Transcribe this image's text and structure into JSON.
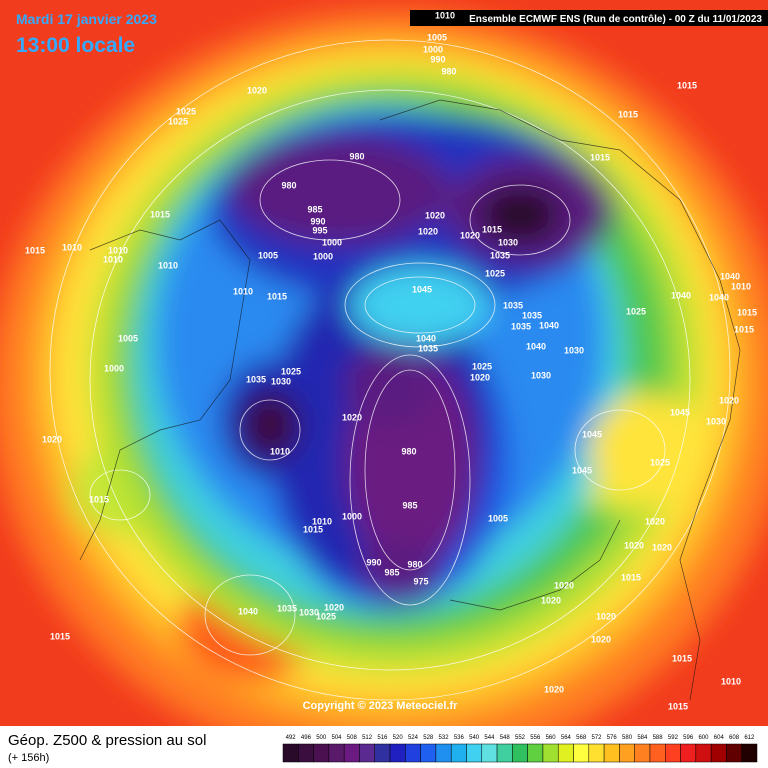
{
  "header": {
    "date": "Mardi 17 janvier 2023",
    "time": "13:00 locale",
    "run": "Ensemble ECMWF ENS  (Run de contrôle)  -  00 Z du 11/01/2023"
  },
  "copyright": "Copyright © 2023 Meteociel.fr",
  "footer": {
    "title": "Géop. Z500 & pression au sol",
    "lead": "(+ 156h)"
  },
  "colorbar": {
    "ticks": [
      492,
      496,
      500,
      504,
      508,
      512,
      516,
      520,
      524,
      528,
      532,
      536,
      540,
      544,
      548,
      552,
      556,
      560,
      564,
      568,
      572,
      576,
      580,
      584,
      588,
      592,
      596,
      600,
      604,
      608,
      612
    ],
    "colors": [
      "#2a0a2a",
      "#3a0f3f",
      "#4a1050",
      "#5a1a6a",
      "#6a1a80",
      "#5a2a90",
      "#3030a0",
      "#2020c0",
      "#2040e0",
      "#2060f0",
      "#2090f0",
      "#20b0f0",
      "#40d0f0",
      "#60e0e0",
      "#40d0a0",
      "#30c060",
      "#60d040",
      "#a0e030",
      "#e0f020",
      "#ffff40",
      "#ffe030",
      "#ffc020",
      "#ffa020",
      "#ff8020",
      "#ff6020",
      "#ff4020",
      "#f02020",
      "#d01010",
      "#a00000",
      "#600000",
      "#200000"
    ]
  },
  "pressure_labels": [
    1020,
    1025,
    1025,
    980,
    980,
    985,
    990,
    995,
    1000,
    1000,
    1005,
    1010,
    1015,
    1015,
    1010,
    1010,
    1010,
    1010,
    1015,
    1020,
    1020,
    1020,
    1015,
    1030,
    1035,
    1025,
    1045,
    1040,
    1035,
    1035,
    1035,
    1035,
    1040,
    1040,
    1030,
    1025,
    1020,
    1030,
    1015,
    1015,
    1015,
    1025,
    1040,
    1010,
    1040,
    1040,
    1015,
    1015,
    1005,
    1000,
    1020,
    1035,
    1030,
    1025,
    1020,
    1010,
    980,
    985,
    1005,
    1010,
    1015,
    1000,
    990,
    985,
    980,
    975,
    1040,
    1035,
    1030,
    1020,
    1025,
    1015,
    1015,
    1045,
    1045,
    1045,
    1030,
    1020,
    1025,
    1020,
    1020,
    1020,
    1015,
    1020,
    1020,
    1020,
    1020,
    1015,
    1010,
    1020,
    1015,
    1010,
    1005,
    1000,
    990,
    980
  ]
}
